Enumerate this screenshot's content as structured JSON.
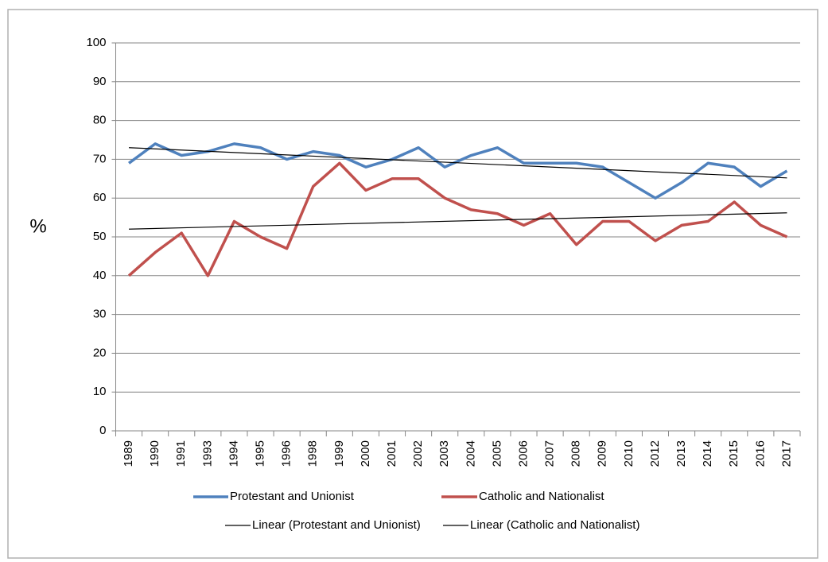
{
  "chart_data": {
    "type": "line",
    "y_label": "%",
    "categories": [
      "1989",
      "1990",
      "1991",
      "1993",
      "1994",
      "1995",
      "1996",
      "1998",
      "1999",
      "2000",
      "2001",
      "2002",
      "2003",
      "2004",
      "2005",
      "2006",
      "2007",
      "2008",
      "2009",
      "2010",
      "2012",
      "2013",
      "2014",
      "2015",
      "2016",
      "2017"
    ],
    "series": [
      {
        "name": "Protestant and Unionist",
        "color": "#4f81bd",
        "values": [
          69,
          74,
          71,
          72,
          74,
          73,
          70,
          72,
          71,
          68,
          70,
          73,
          68,
          71,
          73,
          69,
          69,
          69,
          68,
          64,
          60,
          64,
          69,
          68,
          63,
          67
        ]
      },
      {
        "name": "Catholic and Nationalist",
        "color": "#c0504d",
        "values": [
          40,
          46,
          51,
          40,
          54,
          50,
          47,
          63,
          69,
          62,
          65,
          65,
          60,
          57,
          56,
          53,
          56,
          48,
          54,
          54,
          49,
          53,
          54,
          59,
          53,
          50
        ]
      }
    ],
    "trendlines": [
      {
        "name": "Linear (Protestant and Unionist)",
        "color": "#000000",
        "values": [
          73,
          65.2
        ]
      },
      {
        "name": "Linear (Catholic and Nationalist)",
        "color": "#000000",
        "values": [
          52,
          56.2
        ]
      }
    ],
    "ylim": [
      0,
      100
    ],
    "yticks": [
      0,
      10,
      20,
      30,
      40,
      50,
      60,
      70,
      80,
      90,
      100
    ],
    "grid": true,
    "legend": "bottom"
  }
}
